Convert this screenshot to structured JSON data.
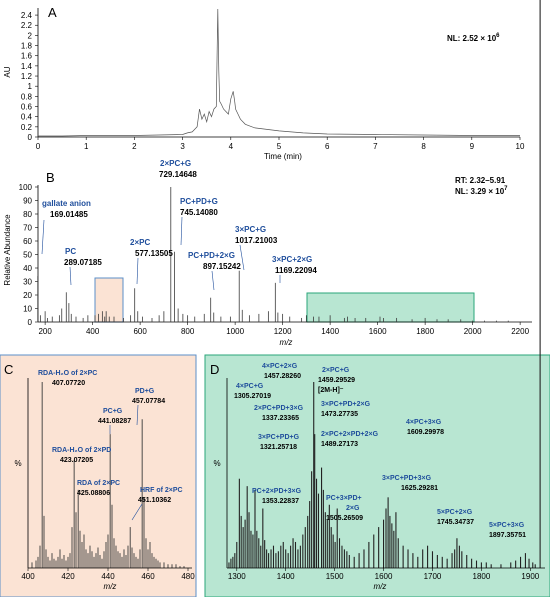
{
  "chart_data": [
    {
      "panel": "A",
      "type": "line",
      "xlabel": "Time (min)",
      "ylabel": "AU",
      "xlim": [
        0,
        10
      ],
      "ylim": [
        0,
        2.5
      ],
      "xticks": [
        "0",
        "1",
        "2",
        "3",
        "4",
        "5",
        "6",
        "7",
        "8",
        "9",
        "10"
      ],
      "yticks": [
        "0",
        "0.2",
        "0.4",
        "0.6",
        "0.8",
        "1",
        "1.2",
        "1.4",
        "1.6",
        "1.8",
        "2",
        "2.2",
        "2.4"
      ],
      "note_label": "NL: 2.52 × 10",
      "note_exp": "6",
      "x": [
        0,
        0.2,
        0.5,
        1,
        1.5,
        2,
        2.5,
        3,
        3.1,
        3.2,
        3.3,
        3.35,
        3.4,
        3.45,
        3.5,
        3.55,
        3.6,
        3.65,
        3.7,
        3.73,
        3.75,
        3.77,
        3.8,
        3.85,
        3.9,
        3.95,
        4.0,
        4.05,
        4.08,
        4.1,
        4.15,
        4.2,
        4.3,
        4.5,
        5,
        5.5,
        6,
        7,
        8,
        9,
        10
      ],
      "y": [
        0.02,
        0.02,
        0.02,
        0.03,
        0.03,
        0.03,
        0.04,
        0.05,
        0.08,
        0.1,
        0.2,
        0.55,
        0.35,
        0.45,
        0.3,
        0.5,
        0.4,
        0.55,
        0.6,
        2.52,
        1.3,
        0.7,
        0.65,
        0.55,
        0.5,
        0.45,
        0.75,
        0.9,
        0.7,
        0.55,
        0.45,
        0.35,
        0.25,
        0.18,
        0.12,
        0.08,
        0.06,
        0.05,
        0.04,
        0.03,
        0.03
      ]
    },
    {
      "panel": "B",
      "type": "bar",
      "xlabel": "m/z",
      "ylabel": "Relative Abundance",
      "xlim": [
        170,
        2250
      ],
      "ylim": [
        0,
        100
      ],
      "xticks": [
        "200",
        "400",
        "600",
        "800",
        "1000",
        "1200",
        "1400",
        "1600",
        "1800",
        "2000",
        "2200"
      ],
      "yticks": [
        "0",
        "10",
        "20",
        "30",
        "40",
        "50",
        "60",
        "70",
        "80",
        "90",
        "100"
      ],
      "note_rt": "RT: 2.32–5.91",
      "note_nl": "NL: 3.29 × 10",
      "note_exp": "7",
      "peaks_x": [
        169.01,
        180,
        200,
        210,
        230,
        260,
        270,
        289.07,
        300,
        310,
        330,
        360,
        380,
        410,
        425,
        441,
        451,
        457,
        470,
        490,
        530,
        560,
        577.14,
        590,
        610,
        650,
        680,
        700,
        729.15,
        745.14,
        760,
        780,
        800,
        830,
        870,
        897.15,
        910,
        940,
        980,
        1017.21,
        1030,
        1060,
        1100,
        1140,
        1169.22,
        1180,
        1200,
        1230,
        1280,
        1300,
        1330,
        1353,
        1400,
        1460,
        1473,
        1505,
        1550,
        1610,
        1625,
        1680,
        1745,
        1800,
        1850,
        1897,
        1950,
        2000,
        2050,
        2100,
        2150
      ],
      "peaks_y": [
        34,
        5,
        8,
        3,
        4,
        5,
        10,
        22,
        14,
        6,
        4,
        3,
        5,
        5,
        6,
        8,
        4,
        8,
        4,
        4,
        3,
        5,
        25,
        8,
        4,
        3,
        5,
        8,
        100,
        52,
        10,
        6,
        5,
        4,
        6,
        18,
        7,
        4,
        4,
        38,
        9,
        5,
        6,
        8,
        29,
        7,
        6,
        4,
        3,
        5,
        4,
        4,
        5,
        3,
        4,
        3,
        3,
        4,
        3,
        3,
        2,
        3,
        2,
        2,
        2,
        1,
        1,
        1,
        1
      ]
    },
    {
      "panel": "C",
      "type": "bar",
      "xlabel": "m/z",
      "ylabel": "%",
      "xlim": [
        400,
        480
      ],
      "ylim": [
        0,
        100
      ],
      "xticks": [
        "400",
        "420",
        "440",
        "460",
        "480"
      ],
      "yticks": [],
      "peaks_x": [
        402,
        404,
        405,
        406,
        407.08,
        408,
        409,
        410,
        411,
        412,
        413,
        414,
        415,
        416,
        417,
        418,
        419,
        420,
        421,
        422,
        423.07,
        424,
        425.09,
        426,
        427,
        428,
        429,
        430,
        431,
        432,
        433,
        434,
        435,
        436,
        437,
        438,
        439,
        440,
        441.08,
        442,
        443,
        444,
        445,
        446,
        447,
        448,
        449,
        450,
        451.1,
        452,
        453,
        454,
        455,
        456,
        457.08,
        458,
        459,
        460,
        461,
        462,
        463,
        464,
        465,
        466,
        468,
        470,
        472,
        474,
        476,
        478
      ],
      "peaks_y": [
        3,
        4,
        6,
        12,
        100,
        28,
        10,
        6,
        4,
        8,
        5,
        4,
        6,
        10,
        5,
        7,
        4,
        6,
        8,
        22,
        58,
        30,
        42,
        20,
        14,
        18,
        10,
        8,
        12,
        9,
        6,
        8,
        11,
        7,
        5,
        9,
        14,
        18,
        72,
        34,
        16,
        12,
        9,
        8,
        6,
        10,
        7,
        12,
        22,
        11,
        8,
        6,
        5,
        10,
        80,
        38,
        16,
        10,
        14,
        8,
        6,
        5,
        4,
        3,
        3,
        2,
        2,
        2,
        1,
        1
      ],
      "annotations": [
        {
          "name": "RDA-H₂O of 2×PC",
          "mz": "407.07720"
        },
        {
          "name": "PD+G",
          "mz": "457.07784"
        },
        {
          "name": "PC+G",
          "mz": "441.08287"
        },
        {
          "name": "RDA-H₂O of 2×PD",
          "mz": "423.07205"
        },
        {
          "name": "RDA of 2×PC",
          "mz": "425.08806"
        },
        {
          "name": "HRF of 2×PC",
          "mz": "451.10362"
        }
      ]
    },
    {
      "panel": "D",
      "type": "bar",
      "xlabel": "m/z",
      "ylabel": "%",
      "xlim": [
        1280,
        1930
      ],
      "ylim": [
        0,
        100
      ],
      "xticks": [
        "1300",
        "1400",
        "1500",
        "1600",
        "1700",
        "1800",
        "1900"
      ],
      "yticks": [],
      "peaks_x": [
        1284,
        1288,
        1292,
        1296,
        1300,
        1305.27,
        1309,
        1313,
        1317,
        1321.26,
        1325,
        1329,
        1333,
        1337.23,
        1341,
        1345,
        1349,
        1353.23,
        1357,
        1361,
        1365,
        1370,
        1375,
        1380,
        1385,
        1390,
        1395,
        1400,
        1405,
        1410,
        1415,
        1420,
        1425,
        1430,
        1435,
        1440,
        1445,
        1449,
        1453,
        1457.28,
        1459.3,
        1463,
        1467,
        1473.28,
        1477,
        1481,
        1485,
        1489.17,
        1493,
        1497,
        1501,
        1505.27,
        1510,
        1515,
        1520,
        1525,
        1530,
        1540,
        1550,
        1560,
        1570,
        1580,
        1590,
        1600,
        1605,
        1609.3,
        1613,
        1617,
        1621,
        1625.29,
        1630,
        1640,
        1650,
        1660,
        1670,
        1680,
        1690,
        1700,
        1710,
        1720,
        1730,
        1740,
        1745.35,
        1750,
        1755,
        1760,
        1770,
        1780,
        1790,
        1800,
        1810,
        1820,
        1840,
        1860,
        1870,
        1880,
        1890,
        1897.36,
        1905,
        1910,
        1920
      ],
      "peaks_y": [
        3,
        5,
        6,
        8,
        14,
        48,
        28,
        22,
        26,
        44,
        30,
        20,
        18,
        42,
        20,
        16,
        12,
        32,
        15,
        10,
        8,
        10,
        12,
        8,
        9,
        12,
        14,
        10,
        8,
        12,
        16,
        14,
        10,
        12,
        18,
        22,
        28,
        36,
        52,
        100,
        72,
        48,
        40,
        54,
        42,
        30,
        26,
        34,
        22,
        18,
        14,
        32,
        16,
        12,
        10,
        9,
        7,
        6,
        8,
        10,
        14,
        18,
        22,
        26,
        32,
        38,
        28,
        24,
        20,
        30,
        16,
        12,
        10,
        8,
        6,
        10,
        12,
        9,
        7,
        6,
        5,
        8,
        10,
        16,
        12,
        9,
        7,
        5,
        4,
        3,
        3,
        2,
        2,
        3,
        4,
        6,
        8,
        5,
        3,
        2
      ],
      "annotations": [
        {
          "name": "4×PC+2×G",
          "mz": "1457.28260"
        },
        {
          "name": "2×PC+G",
          "mz": "1459.29529",
          "extra": "[2M-H]⁻"
        },
        {
          "name": "4×PC+G",
          "mz": "1305.27019"
        },
        {
          "name": "2×PC+PD+3×G",
          "mz": "1337.23365"
        },
        {
          "name": "3×PC+PD+G",
          "mz": "1321.25718"
        },
        {
          "name": "3×PC+PD+2×G",
          "mz": "1473.27735"
        },
        {
          "name": "2×PC+2×PD+2×G",
          "mz": "1489.27173"
        },
        {
          "name": "4×PC+3×G",
          "mz": "1609.29978"
        },
        {
          "name": "PC+2×PD+3×G",
          "mz": "1353.22837"
        },
        {
          "name": "PC+3×PD+",
          "name2": "2×G",
          "mz": "1505.26509"
        },
        {
          "name": "3×PC+PD+3×G",
          "mz": "1625.29281"
        },
        {
          "name": "5×PC+2×G",
          "mz": "1745.34737"
        },
        {
          "name": "5×PC+3×G",
          "mz": "1897.35751"
        }
      ]
    }
  ],
  "panel_b_annotations": [
    {
      "name": "gallate anion",
      "mz": "169.01485"
    },
    {
      "name": "PC",
      "mz": "289.07185"
    },
    {
      "name": "2×PC",
      "mz": "577.13505"
    },
    {
      "name": "2×PC+G",
      "mz": "729.14648"
    },
    {
      "name": "PC+PD+G",
      "mz": "745.14080"
    },
    {
      "name": "PC+PD+2×G",
      "mz": "897.15242"
    },
    {
      "name": "3×PC+G",
      "mz": "1017.21003"
    },
    {
      "name": "3×PC+2×G",
      "mz": "1169.22094"
    }
  ],
  "colors": {
    "chromatogram": "#555555",
    "spectrum": "#3a3a3a",
    "label_blue": "#1f4e9c",
    "highlight_c_fill": "#fbe3d4",
    "highlight_c_stroke": "#5b8fc9",
    "highlight_d_fill": "#b8e6d2",
    "highlight_d_stroke": "#2aa67a",
    "panel_d_spectrum": "#222222"
  }
}
